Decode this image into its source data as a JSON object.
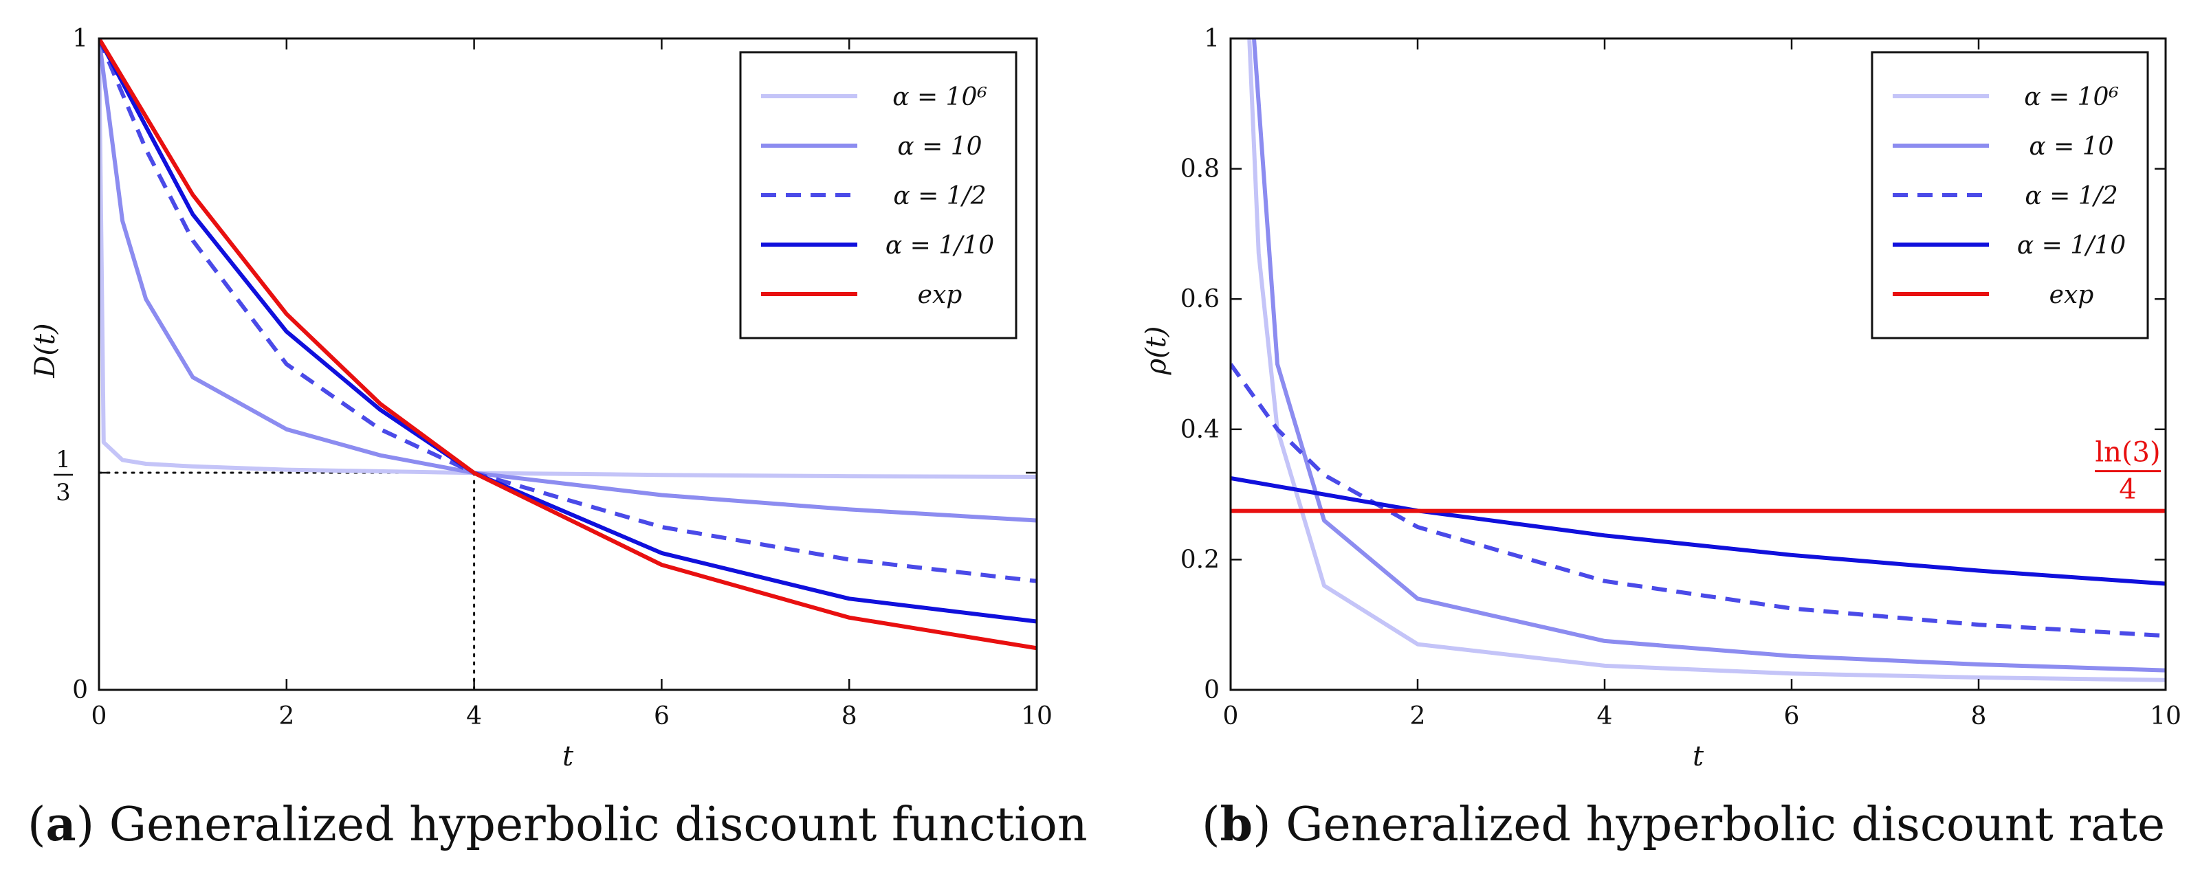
{
  "chart_data": [
    {
      "type": "line",
      "title": "",
      "xlabel": "t",
      "ylabel": "D(t)",
      "xlim": [
        0,
        10
      ],
      "ylim": [
        0,
        1
      ],
      "x_ticks": [
        "0",
        "2",
        "4",
        "6",
        "8",
        "10"
      ],
      "y_ticks": [
        "0",
        "1/3",
        "1"
      ],
      "legend": [
        "α = 10⁶",
        "α = 10",
        "α = 1/2",
        "α = 1/10",
        "exp"
      ],
      "legend_position": "top-right",
      "series": [
        {
          "name": "α = 10⁶",
          "alpha": 1000000,
          "color": "#c4c4f8",
          "dashed": false,
          "x": [
            0,
            0.05,
            0.25,
            0.5,
            1,
            2,
            4,
            6,
            8,
            10
          ],
          "y": [
            1,
            0.38,
            0.353,
            0.347,
            0.343,
            0.338,
            0.333,
            0.33,
            0.328,
            0.327
          ]
        },
        {
          "name": "α = 10",
          "alpha": 10,
          "color": "#8c8cf0",
          "dashed": false,
          "x": [
            0,
            0.25,
            0.5,
            1,
            2,
            3,
            4,
            6,
            8,
            10
          ],
          "y": [
            1,
            0.72,
            0.6,
            0.48,
            0.4,
            0.36,
            0.333,
            0.299,
            0.277,
            0.26
          ]
        },
        {
          "name": "α = 1/2",
          "alpha": 0.5,
          "color": "#4a4ae8",
          "dashed": true,
          "x": [
            0,
            0.5,
            1,
            2,
            3,
            4,
            6,
            8,
            10
          ],
          "y": [
            1,
            0.83,
            0.69,
            0.5,
            0.4,
            0.333,
            0.25,
            0.2,
            0.167
          ]
        },
        {
          "name": "α = 1/10",
          "alpha": 0.1,
          "color": "#1010dc",
          "dashed": false,
          "x": [
            0,
            1,
            2,
            3,
            4,
            6,
            8,
            10
          ],
          "y": [
            1,
            0.73,
            0.55,
            0.43,
            0.333,
            0.21,
            0.14,
            0.105
          ]
        },
        {
          "name": "exp",
          "alpha": 0,
          "color": "#e81010",
          "dashed": false,
          "x": [
            0,
            1,
            2,
            3,
            4,
            6,
            8,
            10
          ],
          "y": [
            1,
            0.76,
            0.577,
            0.439,
            0.333,
            0.192,
            0.111,
            0.064
          ]
        }
      ],
      "reference_point": {
        "x": 4,
        "y": 0.3333
      }
    },
    {
      "type": "line",
      "title": "",
      "xlabel": "t",
      "ylabel": "ρ(t)",
      "xlim": [
        0,
        10
      ],
      "ylim": [
        0,
        1
      ],
      "x_ticks": [
        "0",
        "2",
        "4",
        "6",
        "8",
        "10"
      ],
      "y_ticks": [
        "0",
        "0.2",
        "0.4",
        "0.6",
        "0.8",
        "1"
      ],
      "legend": [
        "α = 10⁶",
        "α = 10",
        "α = 1/2",
        "α = 1/10",
        "exp"
      ],
      "legend_position": "top-right",
      "annotation": {
        "numerator": "ln(3)",
        "denominator": "4",
        "x": 10,
        "y": 0.2747
      },
      "series": [
        {
          "name": "α = 10⁶",
          "alpha": 1000000,
          "color": "#c4c4f8",
          "dashed": false,
          "x": [
            0.2,
            0.3,
            0.5,
            1,
            2,
            4,
            6,
            8,
            10
          ],
          "y": [
            1,
            0.67,
            0.4,
            0.16,
            0.07,
            0.037,
            0.025,
            0.019,
            0.015
          ]
        },
        {
          "name": "α = 10",
          "alpha": 10,
          "color": "#8c8cf0",
          "dashed": false,
          "x": [
            0.25,
            0.5,
            1,
            2,
            4,
            6,
            8,
            10
          ],
          "y": [
            1,
            0.5,
            0.26,
            0.14,
            0.075,
            0.052,
            0.039,
            0.03
          ]
        },
        {
          "name": "α = 1/2",
          "alpha": 0.5,
          "color": "#4a4ae8",
          "dashed": true,
          "x": [
            0,
            0.5,
            1,
            2,
            4,
            6,
            8,
            10
          ],
          "y": [
            0.5,
            0.4,
            0.33,
            0.25,
            0.167,
            0.125,
            0.1,
            0.083
          ]
        },
        {
          "name": "α = 1/10",
          "alpha": 0.1,
          "color": "#1010dc",
          "dashed": false,
          "x": [
            0,
            1,
            2,
            4,
            6,
            8,
            10
          ],
          "y": [
            0.325,
            0.3,
            0.275,
            0.237,
            0.207,
            0.183,
            0.163
          ]
        },
        {
          "name": "exp",
          "alpha": 0,
          "color": "#e81010",
          "dashed": false,
          "x": [
            0,
            10
          ],
          "y": [
            0.2747,
            0.2747
          ]
        }
      ]
    }
  ],
  "captions": {
    "a_label": "a",
    "a_text": "Generalized hyperbolic discount function",
    "b_label": "b",
    "b_text": "Generalized hyperbolic discount rate"
  }
}
